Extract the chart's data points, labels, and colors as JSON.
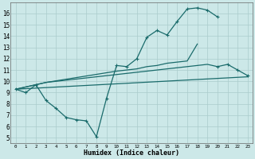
{
  "background_color": "#cce8e8",
  "grid_color": "#aacccc",
  "line_color": "#1a6b6b",
  "xlabel": "Humidex (Indice chaleur)",
  "xlim": [
    -0.5,
    23.5
  ],
  "ylim": [
    4.5,
    17.0
  ],
  "ytick_min": 5,
  "ytick_max": 16,
  "xtick_labels": [
    "0",
    "1",
    "2",
    "3",
    "4",
    "5",
    "6",
    "7",
    "8",
    "9",
    "10",
    "11",
    "12",
    "13",
    "14",
    "15",
    "16",
    "17",
    "18",
    "19",
    "20",
    "21",
    "22",
    "23"
  ],
  "curve1_x": [
    0,
    1,
    2,
    3,
    4,
    5,
    6,
    7,
    8,
    9,
    10,
    11,
    12,
    13,
    14,
    15,
    16,
    17,
    18,
    19,
    20
  ],
  "curve1_y": [
    9.3,
    9.0,
    9.7,
    8.3,
    7.6,
    6.8,
    6.6,
    6.5,
    5.1,
    8.5,
    11.4,
    11.3,
    12.0,
    13.9,
    14.5,
    14.1,
    15.3,
    16.4,
    16.5,
    16.3,
    15.7
  ],
  "curve2_x": [
    0,
    2,
    3,
    10,
    11,
    12,
    13,
    14,
    15,
    16,
    17,
    18
  ],
  "curve2_y": [
    9.3,
    9.7,
    9.9,
    10.9,
    11.0,
    11.1,
    11.3,
    11.4,
    11.6,
    11.7,
    11.8,
    13.3
  ],
  "curve3_x": [
    0,
    2,
    3,
    18,
    19,
    20,
    21,
    22,
    23
  ],
  "curve3_y": [
    9.3,
    9.7,
    9.9,
    11.4,
    11.5,
    11.3,
    11.5,
    11.0,
    10.5
  ],
  "curve4_x": [
    0,
    23
  ],
  "curve4_y": [
    9.3,
    10.4
  ]
}
